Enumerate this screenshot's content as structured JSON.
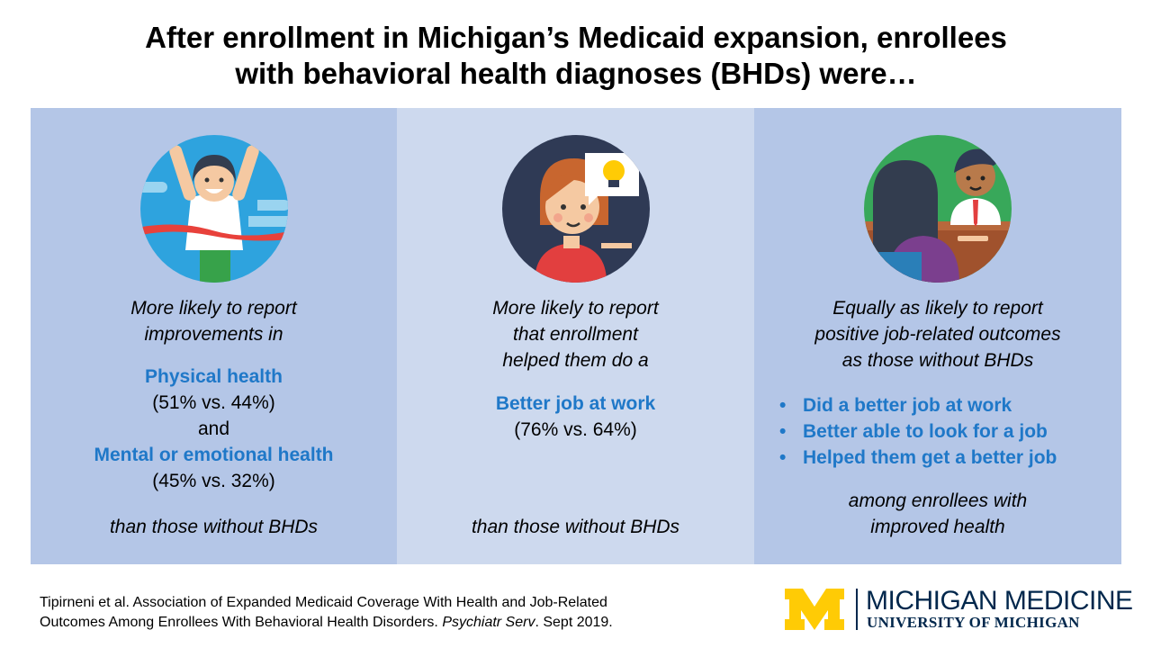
{
  "title": {
    "line1": "After enrollment in Michigan’s Medicaid expansion, enrollees",
    "line2": "with behavioral health diagnoses (BHDs) were…"
  },
  "panel1": {
    "icon": "winner-runner-icon",
    "intro1": "More likely to report",
    "intro2": "improvements in",
    "item1": "Physical health",
    "item1_stat": "(51% vs. 44%)",
    "and": "and",
    "item2": "Mental or emotional health",
    "item2_stat": "(45% vs. 32%)",
    "footer": "than those without BHDs"
  },
  "panel2": {
    "icon": "idea-person-icon",
    "intro1": "More likely to report",
    "intro2": "that enrollment",
    "intro3": "helped them do a",
    "item1": "Better job at work",
    "item1_stat": "(76% vs. 64%)",
    "footer": "than those without BHDs"
  },
  "panel3": {
    "icon": "job-interview-icon",
    "intro1": "Equally as likely to report",
    "intro2": "positive job-related outcomes",
    "intro3": "as those without BHDs",
    "bullets": [
      "Did a better job at work",
      "Better able to look for a job",
      "Helped them get a better job"
    ],
    "footer1": "among enrollees with",
    "footer2": "improved health"
  },
  "citation": {
    "line1": "Tipirneni et al. Association of Expanded Medicaid Coverage With Health and Job-Related",
    "line2_pre": "Outcomes Among Enrollees With Behavioral Health Disorders. ",
    "line2_journal": "Psychiatr Serv",
    "line2_post": ". Sept 2019."
  },
  "logo": {
    "name": "MICHIGAN MEDICINE",
    "sub": "UNIVERSITY OF MICHIGAN"
  },
  "colors": {
    "accent_blue": "#1f78c8",
    "panel_dark": "#b4c6e7",
    "panel_light": "#cdd9ee",
    "maize": "#ffcb05",
    "navy": "#00274c"
  }
}
